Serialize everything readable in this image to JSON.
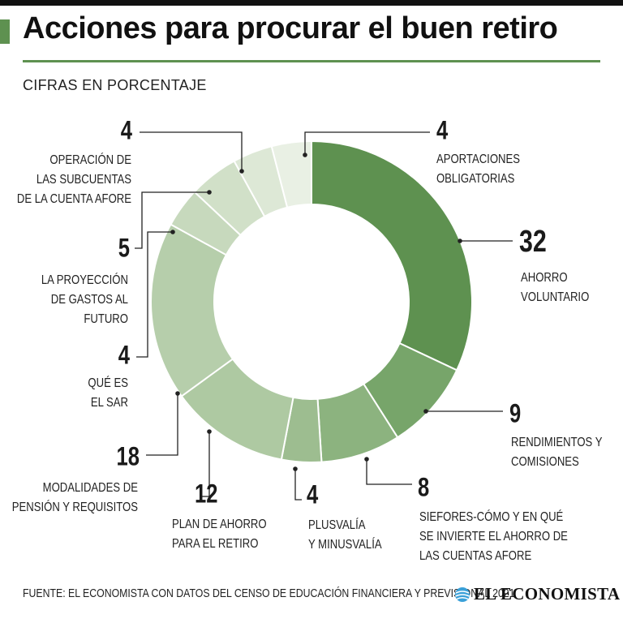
{
  "header": {
    "title": "Acciones para procurar el buen retiro",
    "subtitle": "CIFRAS EN PORCENTAJE"
  },
  "footer": {
    "source": "FUENTE: EL ECONOMISTA CON DATOS DEL CENSO DE EDUCACIÓN FINANCIERA Y PREVISIONAL 2021",
    "brand": "EL ECONOMISTA"
  },
  "colors": {
    "accent": "#5e9150",
    "leader": "#222222",
    "segment_border": "#ffffff"
  },
  "icons": {
    "brand": "globe-icon"
  },
  "chart_data": {
    "type": "pie",
    "style": "donut",
    "title": "Acciones para procurar el buen retiro",
    "subtitle": "CIFRAS EN PORCENTAJE",
    "unit": "%",
    "legend": "none",
    "slices": [
      {
        "value": 32,
        "label": [
          "AHORRO",
          "VOLUNTARIO"
        ],
        "color": "#5e9150"
      },
      {
        "value": 9,
        "label": [
          "RENDIMIENTOS Y",
          "COMISIONES"
        ],
        "color": "#77a56a"
      },
      {
        "value": 8,
        "label": [
          "SIEFORES-CÓMO Y EN QUÉ",
          "SE INVIERTE EL AHORRO DE",
          "LAS CUENTAS AFORE"
        ],
        "color": "#8cb37f"
      },
      {
        "value": 4,
        "label": [
          "PLUSVALÍA",
          "Y MINUSVALÍA"
        ],
        "color": "#9dbd90"
      },
      {
        "value": 12,
        "label": [
          "PLAN DE AHORRO",
          "PARA EL RETIRO"
        ],
        "color": "#aec9a2"
      },
      {
        "value": 18,
        "label": [
          "MODALIDADES DE",
          "PENSIÓN Y REQUISITOS"
        ],
        "color": "#b6ceab"
      },
      {
        "value": 4,
        "label": [
          "QUÉ ES",
          "EL SAR"
        ],
        "color": "#c7d9bd"
      },
      {
        "value": 5,
        "label": [
          "LA PROYECCIÓN",
          "DE GASTOS AL",
          "FUTURO"
        ],
        "color": "#d1e0c8"
      },
      {
        "value": 4,
        "label": [
          "OPERACIÓN DE",
          "LAS SUBCUENTAS",
          "DE LA CUENTA AFORE"
        ],
        "color": "#dde8d6"
      },
      {
        "value": 4,
        "label": [
          "APORTACIONES",
          "OBLIGATORIAS"
        ],
        "color": "#e9f0e4"
      }
    ]
  }
}
